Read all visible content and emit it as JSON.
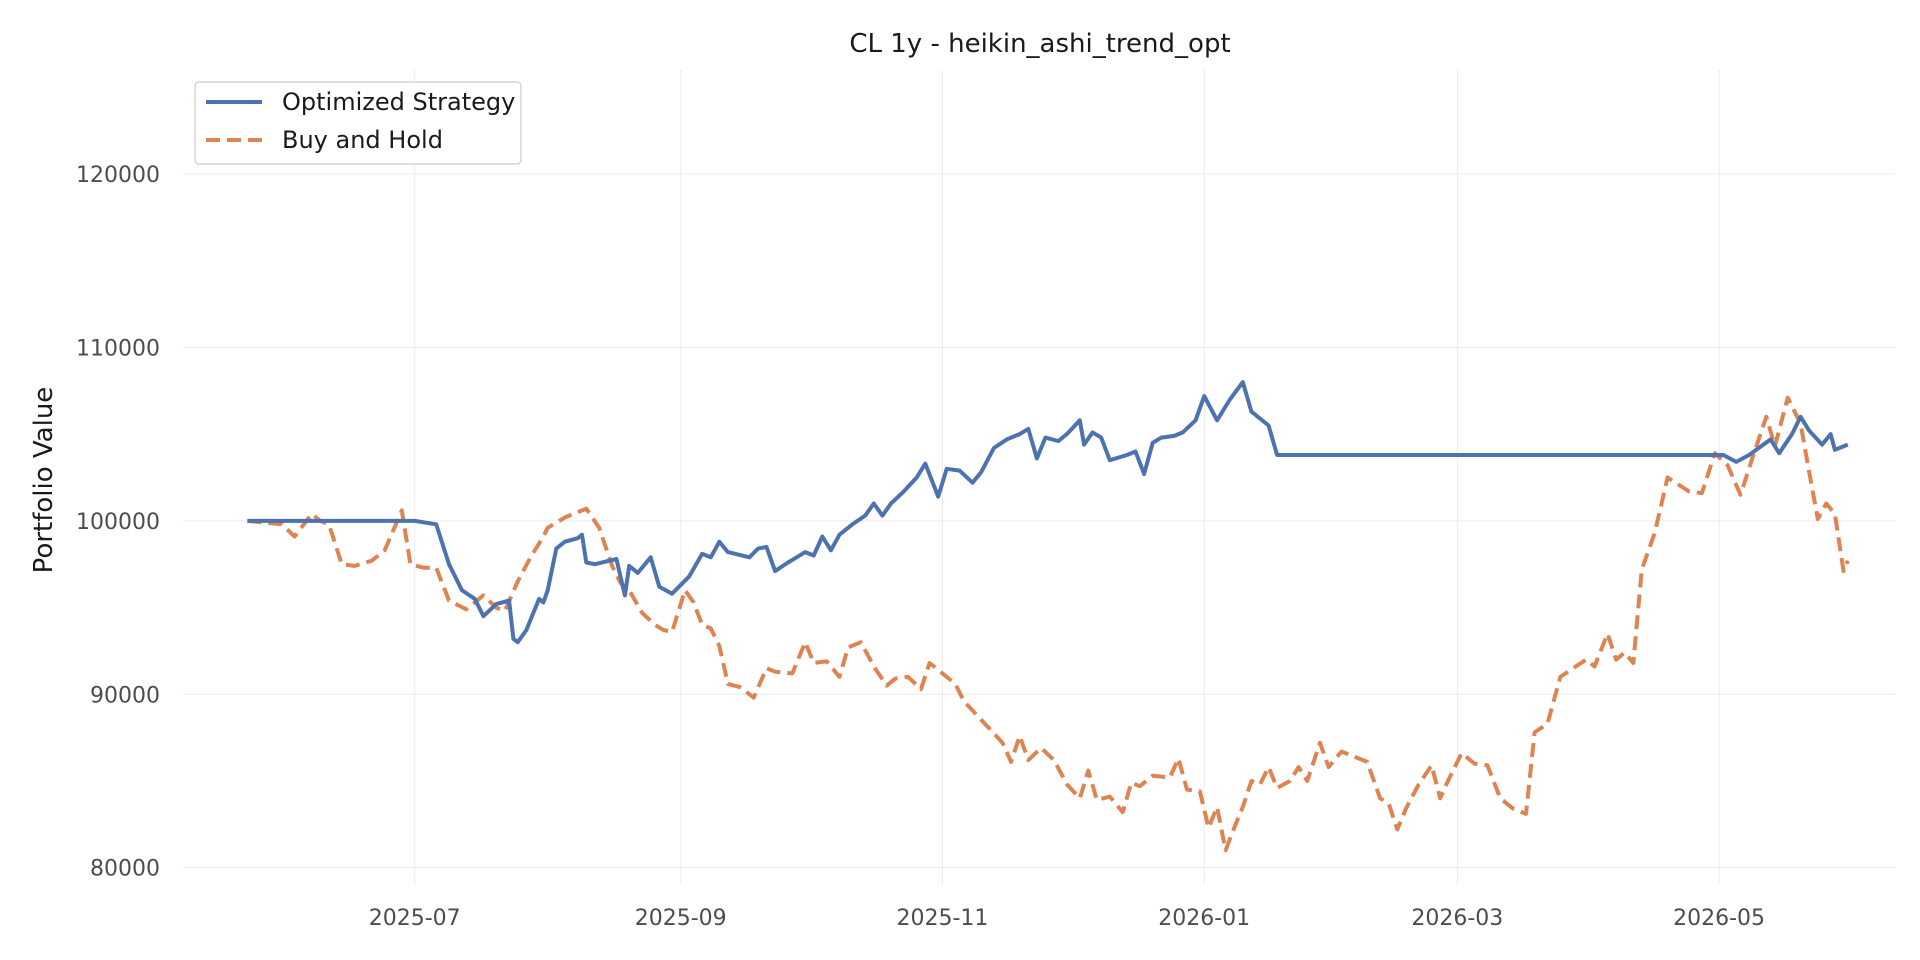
{
  "chart_data": {
    "type": "line",
    "title": "CL 1y - heikin_ashi_trend_opt",
    "xlabel": "",
    "ylabel": "Portfolio Value",
    "x_range": [
      "2025-05-08",
      "2026-06-11"
    ],
    "ylim": [
      79000,
      126000
    ],
    "x_ticks": [
      {
        "date": "2025-07-01",
        "label": "2025-07"
      },
      {
        "date": "2025-09-01",
        "label": "2025-09"
      },
      {
        "date": "2025-11-01",
        "label": "2025-11"
      },
      {
        "date": "2026-01-01",
        "label": "2026-01"
      },
      {
        "date": "2026-03-01",
        "label": "2026-03"
      },
      {
        "date": "2026-05-01",
        "label": "2026-05"
      }
    ],
    "y_ticks": [
      {
        "value": 80000,
        "label": "80000"
      },
      {
        "value": 90000,
        "label": "90000"
      },
      {
        "value": 100000,
        "label": "100000"
      },
      {
        "value": 110000,
        "label": "110000"
      },
      {
        "value": 120000,
        "label": "120000"
      }
    ],
    "grid": true,
    "legend_position": "top-left",
    "series": [
      {
        "name": "Optimized Strategy",
        "color": "#4c72b0",
        "style": "solid",
        "points": [
          [
            "2025-05-23",
            100000
          ],
          [
            "2025-06-10",
            100000
          ],
          [
            "2025-07-01",
            100000
          ],
          [
            "2025-07-06",
            99800
          ],
          [
            "2025-07-09",
            97500
          ],
          [
            "2025-07-12",
            96000
          ],
          [
            "2025-07-15",
            95500
          ],
          [
            "2025-07-17",
            94500
          ],
          [
            "2025-07-20",
            95200
          ],
          [
            "2025-07-23",
            95400
          ],
          [
            "2025-07-24",
            93200
          ],
          [
            "2025-07-25",
            93000
          ],
          [
            "2025-07-27",
            93700
          ],
          [
            "2025-07-30",
            95500
          ],
          [
            "2025-07-31",
            95300
          ],
          [
            "2025-08-01",
            96000
          ],
          [
            "2025-08-03",
            98400
          ],
          [
            "2025-08-05",
            98800
          ],
          [
            "2025-08-08",
            99000
          ],
          [
            "2025-08-09",
            99200
          ],
          [
            "2025-08-10",
            97600
          ],
          [
            "2025-08-12",
            97500
          ],
          [
            "2025-08-17",
            97800
          ],
          [
            "2025-08-19",
            95700
          ],
          [
            "2025-08-20",
            97400
          ],
          [
            "2025-08-22",
            97000
          ],
          [
            "2025-08-25",
            97900
          ],
          [
            "2025-08-27",
            96200
          ],
          [
            "2025-08-30",
            95800
          ],
          [
            "2025-09-03",
            96800
          ],
          [
            "2025-09-06",
            98100
          ],
          [
            "2025-09-08",
            97900
          ],
          [
            "2025-09-10",
            98800
          ],
          [
            "2025-09-12",
            98200
          ],
          [
            "2025-09-17",
            97900
          ],
          [
            "2025-09-19",
            98400
          ],
          [
            "2025-09-21",
            98500
          ],
          [
            "2025-09-23",
            97100
          ],
          [
            "2025-09-26",
            97600
          ],
          [
            "2025-09-28",
            97900
          ],
          [
            "2025-09-30",
            98200
          ],
          [
            "2025-10-02",
            98000
          ],
          [
            "2025-10-04",
            99100
          ],
          [
            "2025-10-06",
            98300
          ],
          [
            "2025-10-08",
            99200
          ],
          [
            "2025-10-11",
            99800
          ],
          [
            "2025-10-14",
            100300
          ],
          [
            "2025-10-16",
            101000
          ],
          [
            "2025-10-18",
            100300
          ],
          [
            "2025-10-20",
            101000
          ],
          [
            "2025-10-23",
            101700
          ],
          [
            "2025-10-26",
            102500
          ],
          [
            "2025-10-28",
            103300
          ],
          [
            "2025-10-31",
            101400
          ],
          [
            "2025-11-02",
            103000
          ],
          [
            "2025-11-05",
            102900
          ],
          [
            "2025-11-08",
            102200
          ],
          [
            "2025-11-10",
            102800
          ],
          [
            "2025-11-13",
            104200
          ],
          [
            "2025-11-16",
            104700
          ],
          [
            "2025-11-19",
            105000
          ],
          [
            "2025-11-21",
            105300
          ],
          [
            "2025-11-23",
            103600
          ],
          [
            "2025-11-25",
            104800
          ],
          [
            "2025-11-28",
            104600
          ],
          [
            "2025-11-30",
            105000
          ],
          [
            "2025-12-03",
            105800
          ],
          [
            "2025-12-04",
            104400
          ],
          [
            "2025-12-06",
            105100
          ],
          [
            "2025-12-08",
            104800
          ],
          [
            "2025-12-10",
            103500
          ],
          [
            "2025-12-14",
            103800
          ],
          [
            "2025-12-16",
            104000
          ],
          [
            "2025-12-18",
            102700
          ],
          [
            "2025-12-20",
            104500
          ],
          [
            "2025-12-22",
            104800
          ],
          [
            "2025-12-25",
            104900
          ],
          [
            "2025-12-27",
            105100
          ],
          [
            "2025-12-30",
            105800
          ],
          [
            "2026-01-01",
            107200
          ],
          [
            "2026-01-04",
            105800
          ],
          [
            "2026-01-07",
            107000
          ],
          [
            "2026-01-10",
            108000
          ],
          [
            "2026-01-12",
            106300
          ],
          [
            "2026-01-16",
            105500
          ],
          [
            "2026-01-18",
            103800
          ],
          [
            "2026-01-25",
            103800
          ],
          [
            "2026-02-15",
            103800
          ],
          [
            "2026-03-15",
            103800
          ],
          [
            "2026-04-05",
            103800
          ],
          [
            "2026-04-20",
            103800
          ],
          [
            "2026-04-28",
            103800
          ],
          [
            "2026-05-02",
            103800
          ],
          [
            "2026-05-05",
            103400
          ],
          [
            "2026-05-08",
            103800
          ],
          [
            "2026-05-13",
            104700
          ],
          [
            "2026-05-15",
            103900
          ],
          [
            "2026-05-18",
            105000
          ],
          [
            "2026-05-20",
            106000
          ],
          [
            "2026-05-22",
            105200
          ],
          [
            "2026-05-25",
            104400
          ],
          [
            "2026-05-27",
            105000
          ],
          [
            "2026-05-28",
            104100
          ],
          [
            "2026-05-31",
            104400
          ]
        ]
      },
      {
        "name": "Buy and Hold",
        "color": "#dd8452",
        "style": "dashed",
        "points": [
          [
            "2025-05-23",
            100000
          ],
          [
            "2025-05-31",
            99800
          ],
          [
            "2025-06-03",
            99100
          ],
          [
            "2025-06-07",
            100400
          ],
          [
            "2025-06-09",
            100000
          ],
          [
            "2025-06-11",
            99800
          ],
          [
            "2025-06-14",
            97500
          ],
          [
            "2025-06-17",
            97400
          ],
          [
            "2025-06-21",
            97700
          ],
          [
            "2025-06-24",
            98300
          ],
          [
            "2025-06-28",
            100600
          ],
          [
            "2025-06-30",
            97500
          ],
          [
            "2025-07-03",
            97300
          ],
          [
            "2025-07-06",
            97300
          ],
          [
            "2025-07-09",
            95400
          ],
          [
            "2025-07-13",
            94900
          ],
          [
            "2025-07-17",
            95700
          ],
          [
            "2025-07-20",
            95000
          ],
          [
            "2025-07-22",
            94800
          ],
          [
            "2025-07-25",
            96500
          ],
          [
            "2025-07-28",
            97900
          ],
          [
            "2025-07-31",
            99100
          ],
          [
            "2025-08-01",
            99600
          ],
          [
            "2025-08-05",
            100200
          ],
          [
            "2025-08-10",
            100700
          ],
          [
            "2025-08-13",
            99600
          ],
          [
            "2025-08-16",
            97400
          ],
          [
            "2025-08-18",
            96400
          ],
          [
            "2025-08-20",
            96000
          ],
          [
            "2025-08-23",
            94700
          ],
          [
            "2025-08-26",
            94000
          ],
          [
            "2025-08-28",
            93700
          ],
          [
            "2025-08-30",
            93600
          ],
          [
            "2025-09-02",
            96000
          ],
          [
            "2025-09-04",
            95300
          ],
          [
            "2025-09-06",
            94000
          ],
          [
            "2025-09-08",
            93800
          ],
          [
            "2025-09-10",
            92800
          ],
          [
            "2025-09-12",
            90600
          ],
          [
            "2025-09-15",
            90400
          ],
          [
            "2025-09-18",
            89800
          ],
          [
            "2025-09-21",
            91500
          ],
          [
            "2025-09-23",
            91300
          ],
          [
            "2025-09-27",
            91200
          ],
          [
            "2025-09-30",
            93000
          ],
          [
            "2025-10-02",
            91800
          ],
          [
            "2025-10-05",
            91900
          ],
          [
            "2025-10-08",
            91000
          ],
          [
            "2025-10-10",
            92700
          ],
          [
            "2025-10-13",
            93000
          ],
          [
            "2025-10-16",
            91600
          ],
          [
            "2025-10-19",
            90500
          ],
          [
            "2025-10-21",
            90900
          ],
          [
            "2025-10-24",
            91000
          ],
          [
            "2025-10-27",
            90300
          ],
          [
            "2025-10-29",
            91800
          ],
          [
            "2025-11-01",
            91200
          ],
          [
            "2025-11-04",
            90600
          ],
          [
            "2025-11-06",
            89600
          ],
          [
            "2025-11-09",
            88800
          ],
          [
            "2025-11-12",
            88000
          ],
          [
            "2025-11-15",
            87200
          ],
          [
            "2025-11-17",
            86100
          ],
          [
            "2025-11-19",
            87600
          ],
          [
            "2025-11-21",
            86200
          ],
          [
            "2025-11-24",
            86900
          ],
          [
            "2025-11-27",
            86200
          ],
          [
            "2025-11-30",
            84800
          ],
          [
            "2025-12-03",
            84000
          ],
          [
            "2025-12-05",
            85600
          ],
          [
            "2025-12-07",
            83900
          ],
          [
            "2025-12-10",
            84100
          ],
          [
            "2025-12-13",
            83200
          ],
          [
            "2025-12-15",
            84900
          ],
          [
            "2025-12-17",
            84700
          ],
          [
            "2025-12-20",
            85300
          ],
          [
            "2025-12-24",
            85200
          ],
          [
            "2025-12-26",
            86300
          ],
          [
            "2025-12-28",
            84500
          ],
          [
            "2025-12-31",
            84400
          ],
          [
            "2026-01-02",
            82300
          ],
          [
            "2026-01-04",
            83500
          ],
          [
            "2026-01-06",
            81000
          ],
          [
            "2026-01-08",
            82300
          ],
          [
            "2026-01-10",
            83500
          ],
          [
            "2026-01-12",
            85000
          ],
          [
            "2026-01-14",
            84800
          ],
          [
            "2026-01-16",
            85800
          ],
          [
            "2026-01-18",
            84600
          ],
          [
            "2026-01-21",
            85000
          ],
          [
            "2026-01-23",
            85800
          ],
          [
            "2026-01-25",
            85000
          ],
          [
            "2026-01-28",
            87200
          ],
          [
            "2026-01-30",
            85800
          ],
          [
            "2026-02-02",
            86700
          ],
          [
            "2026-02-05",
            86400
          ],
          [
            "2026-02-08",
            86100
          ],
          [
            "2026-02-11",
            84000
          ],
          [
            "2026-02-13",
            83700
          ],
          [
            "2026-02-15",
            82200
          ],
          [
            "2026-02-17",
            83400
          ],
          [
            "2026-02-20",
            84800
          ],
          [
            "2026-02-23",
            85900
          ],
          [
            "2026-02-25",
            84000
          ],
          [
            "2026-02-27",
            85100
          ],
          [
            "2026-03-02",
            86600
          ],
          [
            "2026-03-05",
            86000
          ],
          [
            "2026-03-08",
            85900
          ],
          [
            "2026-03-11",
            84000
          ],
          [
            "2026-03-14",
            83400
          ],
          [
            "2026-03-17",
            83100
          ],
          [
            "2026-03-19",
            87800
          ],
          [
            "2026-03-22",
            88300
          ],
          [
            "2026-03-25",
            91000
          ],
          [
            "2026-03-28",
            91500
          ],
          [
            "2026-03-31",
            92000
          ],
          [
            "2026-04-02",
            91600
          ],
          [
            "2026-04-05",
            93500
          ],
          [
            "2026-04-07",
            92000
          ],
          [
            "2026-04-09",
            92400
          ],
          [
            "2026-04-11",
            91800
          ],
          [
            "2026-04-13",
            97200
          ],
          [
            "2026-04-16",
            99300
          ],
          [
            "2026-04-19",
            102500
          ],
          [
            "2026-04-24",
            101700
          ],
          [
            "2026-04-27",
            101600
          ],
          [
            "2026-04-30",
            103900
          ],
          [
            "2026-05-03",
            103200
          ],
          [
            "2026-05-06",
            101500
          ],
          [
            "2026-05-09",
            103800
          ],
          [
            "2026-05-12",
            106000
          ],
          [
            "2026-05-14",
            104300
          ],
          [
            "2026-05-17",
            107100
          ],
          [
            "2026-05-20",
            105600
          ],
          [
            "2026-05-22",
            102800
          ],
          [
            "2026-05-24",
            100100
          ],
          [
            "2026-05-26",
            101000
          ],
          [
            "2026-05-28",
            100400
          ],
          [
            "2026-05-30",
            97100
          ],
          [
            "2026-05-31",
            97700
          ]
        ]
      }
    ]
  }
}
